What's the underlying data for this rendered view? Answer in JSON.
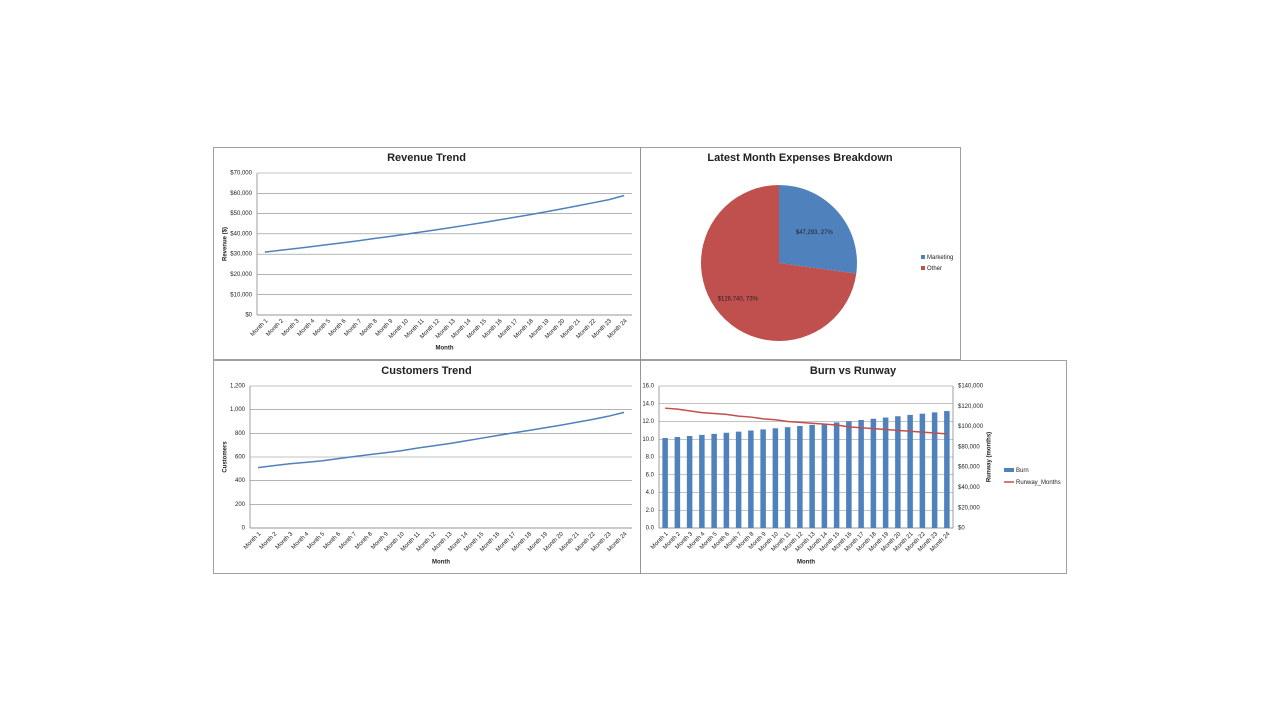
{
  "chart_data": [
    {
      "type": "line",
      "title": "Revenue Trend",
      "xlabel": "Month",
      "ylabel": "Revenue ($)",
      "categories": [
        "Month 1",
        "Month 2",
        "Month 3",
        "Month 4",
        "Month 5",
        "Month 6",
        "Month 7",
        "Month 8",
        "Month 9",
        "Month 10",
        "Month 11",
        "Month 12",
        "Month 13",
        "Month 14",
        "Month 15",
        "Month 16",
        "Month 17",
        "Month 18",
        "Month 19",
        "Month 20",
        "Month 21",
        "Month 22",
        "Month 23",
        "Month 24"
      ],
      "values": [
        31000,
        31900,
        32800,
        33700,
        34700,
        35600,
        36600,
        37700,
        38700,
        39800,
        40900,
        42000,
        43200,
        44400,
        45600,
        46900,
        48200,
        49500,
        50900,
        52300,
        53800,
        55300,
        56800,
        58900
      ],
      "color": "#4f81bd",
      "grid": true,
      "ylim": [
        0,
        70000
      ],
      "yticks": [
        {
          "value": 0,
          "label": "$0"
        },
        {
          "value": 10000,
          "label": "$10,000"
        },
        {
          "value": 20000,
          "label": "$20,000"
        },
        {
          "value": 30000,
          "label": "$30,000"
        },
        {
          "value": 40000,
          "label": "$40,000"
        },
        {
          "value": 50000,
          "label": "$50,000"
        },
        {
          "value": 60000,
          "label": "$60,000"
        },
        {
          "value": 70000,
          "label": "$70,000"
        }
      ]
    },
    {
      "type": "pie",
      "title": "Latest Month Expenses Breakdown",
      "legend": "right",
      "categories": [
        "Marketing",
        "Other"
      ],
      "values": [
        47293,
        126740
      ],
      "value_labels": [
        "$47,293, 27%",
        "$126,740, 73%"
      ],
      "colors": [
        "#4f81bd",
        "#c0504d"
      ]
    },
    {
      "type": "line",
      "title": "Customers Trend",
      "xlabel": "Month",
      "ylabel": "Customers",
      "categories": [
        "Month 1",
        "Month 2",
        "Month 3",
        "Month 4",
        "Month 5",
        "Month 6",
        "Month 7",
        "Month 8",
        "Month 9",
        "Month 10",
        "Month 11",
        "Month 12",
        "Month 13",
        "Month 14",
        "Month 15",
        "Month 16",
        "Month 17",
        "Month 18",
        "Month 19",
        "Month 20",
        "Month 21",
        "Month 22",
        "Month 23",
        "Month 24"
      ],
      "values": [
        510,
        527,
        543,
        555,
        567,
        585,
        603,
        620,
        636,
        653,
        675,
        694,
        713,
        735,
        758,
        781,
        803,
        824,
        846,
        868,
        893,
        917,
        944,
        977
      ],
      "color": "#4f81bd",
      "grid": true,
      "ylim": [
        0,
        1200
      ],
      "yticks": [
        0,
        200,
        400,
        600,
        800,
        {
          "value": 1000,
          "label": "1,000"
        },
        {
          "value": 1200,
          "label": "1,200"
        }
      ]
    },
    {
      "type": "combo",
      "title": "Burn vs Runway",
      "xlabel": "Month",
      "y2label": "Runway (months)",
      "legend": "right",
      "grid": true,
      "categories": [
        "Month 1",
        "Month 2",
        "Month 3",
        "Month 4",
        "Month 5",
        "Month 6",
        "Month 7",
        "Month 8",
        "Month 9",
        "Month 10",
        "Month 11",
        "Month 12",
        "Month 13",
        "Month 14",
        "Month 15",
        "Month 16",
        "Month 17",
        "Month 18",
        "Month 19",
        "Month 20",
        "Month 21",
        "Month 22",
        "Month 23",
        "Month 24"
      ],
      "series": [
        {
          "name": "Burn",
          "type": "bar",
          "axis": "y2",
          "color": "#4f81bd",
          "values": [
            88700,
            89700,
            90700,
            91800,
            92800,
            93900,
            95000,
            96100,
            97200,
            98300,
            99400,
            100600,
            101700,
            102900,
            104100,
            105300,
            106500,
            107700,
            108900,
            110200,
            111500,
            112700,
            114000,
            115300
          ]
        },
        {
          "name": "Runway_Months",
          "type": "line",
          "color": "#c0504d",
          "values": [
            13.5,
            13.4,
            13.2,
            13.0,
            12.9,
            12.8,
            12.6,
            12.5,
            12.3,
            12.2,
            12.0,
            11.9,
            11.8,
            11.7,
            11.6,
            11.4,
            11.3,
            11.2,
            11.1,
            11.0,
            10.9,
            10.8,
            10.7,
            10.6
          ]
        }
      ],
      "ylim": [
        0,
        16
      ],
      "yticks": [
        {
          "value": 0,
          "label": "0.0"
        },
        {
          "value": 2,
          "label": "2.0"
        },
        {
          "value": 4,
          "label": "4.0"
        },
        {
          "value": 6,
          "label": "6.0"
        },
        {
          "value": 8,
          "label": "8.0"
        },
        {
          "value": 10,
          "label": "10.0"
        },
        {
          "value": 12,
          "label": "12.0"
        },
        {
          "value": 14,
          "label": "14.0"
        },
        {
          "value": 16,
          "label": "16.0"
        }
      ],
      "y2lim": [
        0,
        140000
      ],
      "y2ticks": [
        {
          "value": 0,
          "label": "$0"
        },
        {
          "value": 20000,
          "label": "$20,000"
        },
        {
          "value": 40000,
          "label": "$40,000"
        },
        {
          "value": 60000,
          "label": "$60,000"
        },
        {
          "value": 80000,
          "label": "$80,000"
        },
        {
          "value": 100000,
          "label": "$100,000"
        },
        {
          "value": 120000,
          "label": "$120,000"
        },
        {
          "value": 140000,
          "label": "$140,000"
        }
      ]
    }
  ]
}
